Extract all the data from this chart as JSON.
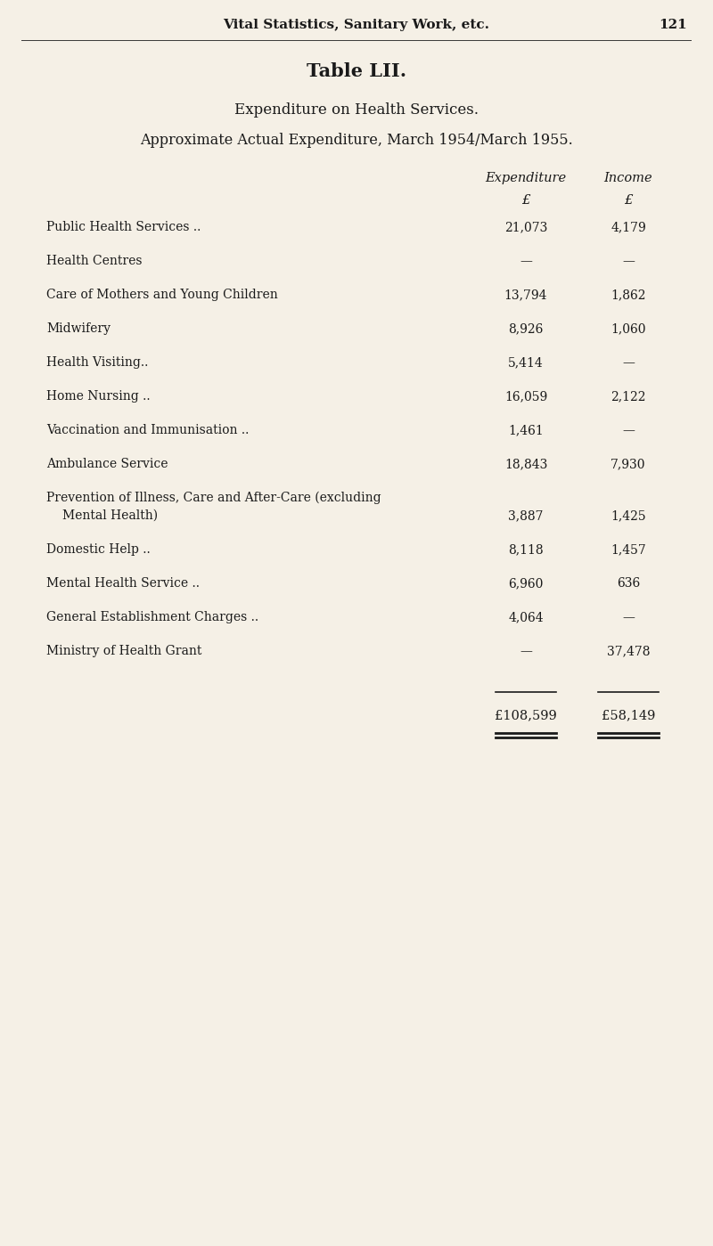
{
  "bg_color": "#f5f0e6",
  "text_color": "#1a1a1a",
  "header_text": "Vital Statistics, Sanitary Work, etc.",
  "page_number": "121",
  "table_title": "Table LII.",
  "subtitle1": "Expenditure on Health Services.",
  "subtitle2": "Approximate Actual Expenditure, March 1954/March 1955.",
  "col_header1": "Expenditure",
  "col_header2": "Income",
  "col_subheader": "£",
  "rows": [
    {
      "label": "Public Health Services ..",
      "label2": null,
      "exp": "21,073",
      "inc": "4,179"
    },
    {
      "label": "Health Centres",
      "label2": null,
      "exp": "—",
      "inc": "—"
    },
    {
      "label": "Care of Mothers and Young Children",
      "label2": null,
      "exp": "13,794",
      "inc": "1,862"
    },
    {
      "label": "Midwifery",
      "label2": null,
      "exp": "8,926",
      "inc": "1,060"
    },
    {
      "label": "Health Visiting..",
      "label2": null,
      "exp": "5,414",
      "inc": "—"
    },
    {
      "label": "Home Nursing ..",
      "label2": null,
      "exp": "16,059",
      "inc": "2,122"
    },
    {
      "label": "Vaccination and Immunisation ..",
      "label2": null,
      "exp": "1,461",
      "inc": "—"
    },
    {
      "label": "Ambulance Service",
      "label2": null,
      "exp": "18,843",
      "inc": "7,930"
    },
    {
      "label": "Prevention of Illness, Care and After-Care (excluding",
      "label2": "    Mental Health)",
      "exp": "3,887",
      "inc": "1,425"
    },
    {
      "label": "Domestic Help ..",
      "label2": null,
      "exp": "8,118",
      "inc": "1,457"
    },
    {
      "label": "Mental Health Service ..",
      "label2": null,
      "exp": "6,960",
      "inc": "636"
    },
    {
      "label": "General Establishment Charges ..",
      "label2": null,
      "exp": "4,064",
      "inc": "—"
    },
    {
      "label": "Ministry of Health Grant",
      "label2": null,
      "exp": "—",
      "inc": "37,478"
    }
  ],
  "total_exp": "£108,599",
  "total_inc": "£58,149",
  "figw": 8.0,
  "figh": 13.99,
  "dpi": 100
}
